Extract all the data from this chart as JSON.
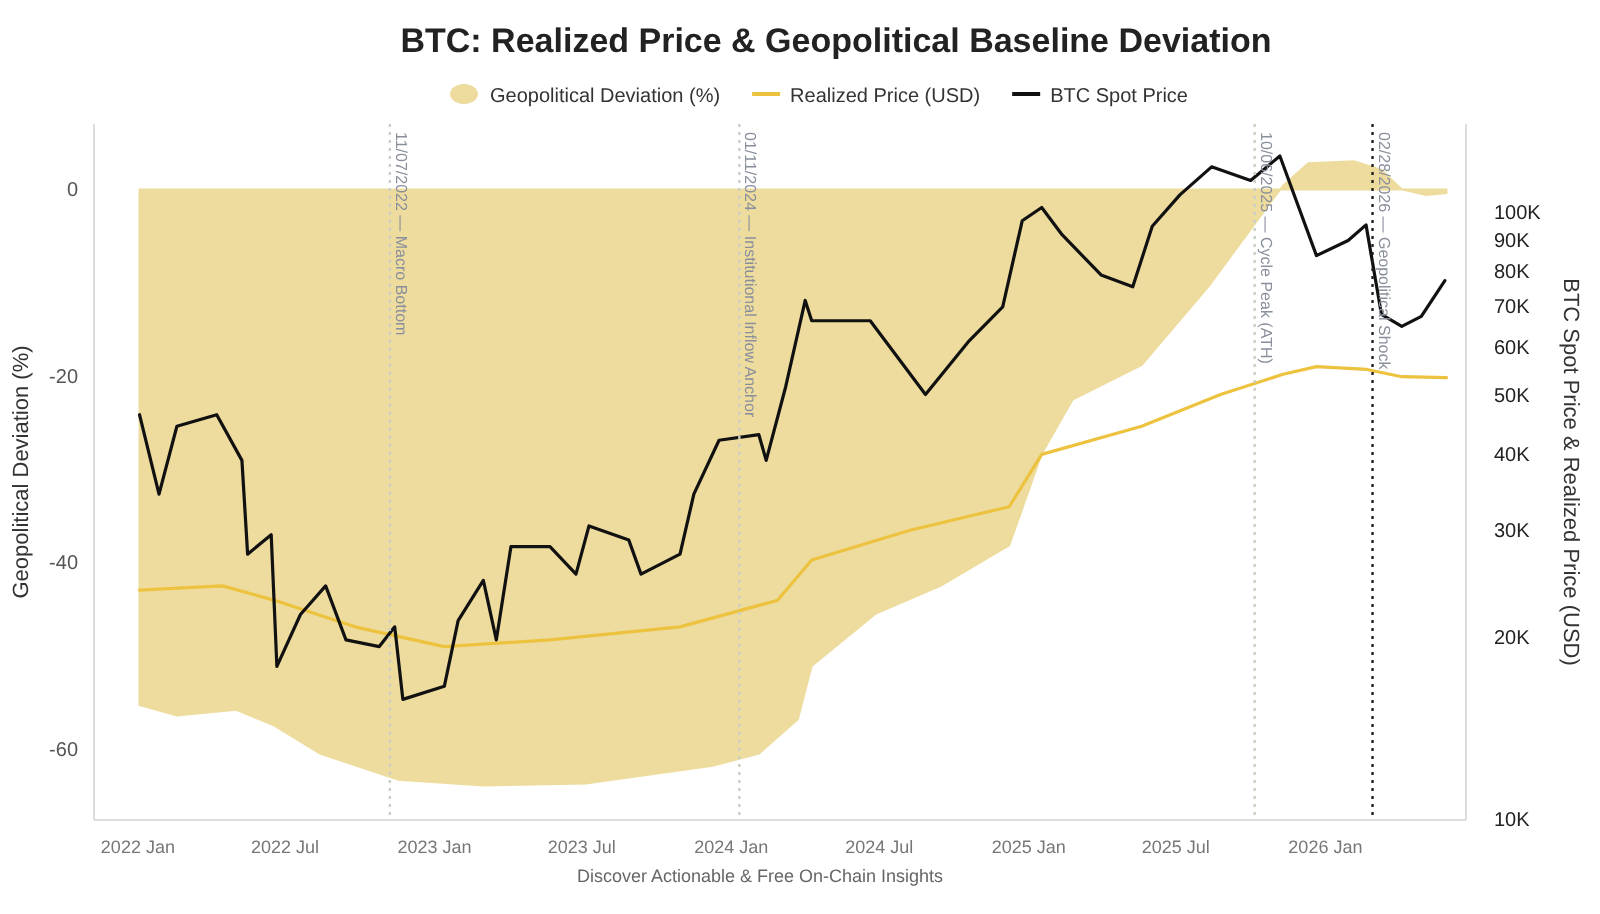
{
  "chart_data": {
    "type": "line",
    "title": "BTC: Realized Price & Geopolitical Baseline Deviation",
    "xlabel": null,
    "ylabel": "Geopolitical Deviation (%)",
    "y2label": "BTC Spot Price & Realized Price (USD)",
    "xlim": [
      "2021-11-08",
      "2026-06-23"
    ],
    "xticks": [
      {
        "value": "2022-01-01",
        "label": "2022 Jan"
      },
      {
        "value": "2022-07-01",
        "label": "2022 Jul"
      },
      {
        "value": "2023-01-01",
        "label": "2023 Jan"
      },
      {
        "value": "2023-07-01",
        "label": "2023 Jul"
      },
      {
        "value": "2024-01-01",
        "label": "2024 Jan"
      },
      {
        "value": "2024-07-01",
        "label": "2024 Jul"
      },
      {
        "value": "2025-01-01",
        "label": "2025 Jan"
      },
      {
        "value": "2025-07-01",
        "label": "2025 Jul"
      },
      {
        "value": "2026-01-01",
        "label": "2026 Jan"
      }
    ],
    "ylim": [
      -67.5,
      7
    ],
    "yticks": [
      0,
      -20,
      -40,
      -60
    ],
    "y2lim": [
      10000,
      140000
    ],
    "y2ticks": [
      {
        "value": 10000,
        "label": "10K"
      },
      {
        "value": 20000,
        "label": "20K"
      },
      {
        "value": 30000,
        "label": "30K"
      },
      {
        "value": 40000,
        "label": "40K"
      },
      {
        "value": 50000,
        "label": "50K"
      },
      {
        "value": 60000,
        "label": "60K"
      },
      {
        "value": 70000,
        "label": "70K"
      },
      {
        "value": 80000,
        "label": "80K"
      },
      {
        "value": 90000,
        "label": "90K"
      },
      {
        "value": 100000,
        "label": "100K"
      }
    ],
    "log": "y2",
    "legend": "top",
    "series": [
      {
        "name": "Geopolitical Deviation (%)",
        "type": "area",
        "color": "#eedc9e",
        "x": [
          "2022-01-03",
          "2022-02-18",
          "2022-05-02",
          "2022-06-18",
          "2022-08-13",
          "2022-11-18",
          "2023-03-02",
          "2023-07-06",
          "2023-12-09",
          "2024-02-04",
          "2024-03-23",
          "2024-04-09",
          "2024-06-27",
          "2024-09-15",
          "2024-12-08",
          "2025-01-17",
          "2025-02-24",
          "2025-05-20",
          "2025-08-11",
          "2025-10-28",
          "2025-11-10",
          "2025-12-11",
          "2026-02-05",
          "2026-03-11",
          "2026-04-05",
          "2026-05-05",
          "2026-05-30"
        ],
        "values": [
          -55.2,
          -56.3,
          -55.7,
          -57.4,
          -60.4,
          -63.2,
          -63.8,
          -63.6,
          -61.7,
          -60.4,
          -56.7,
          -51.0,
          -45.4,
          -42.4,
          -38.1,
          -28.3,
          -22.5,
          -18.8,
          -10.3,
          -1.1,
          0.4,
          2.8,
          3.0,
          2.1,
          0,
          -0.6,
          -0.4
        ]
      },
      {
        "name": "Realized Price (USD)",
        "axis": "y2",
        "color": "#ecc23e",
        "x": [
          "2022-01-03",
          "2022-04-15",
          "2022-06-18",
          "2022-09-25",
          "2023-01-13",
          "2023-05-23",
          "2023-10-30",
          "2024-02-27",
          "2024-04-09",
          "2024-08-08",
          "2024-12-08",
          "2025-01-17",
          "2025-05-20",
          "2025-08-25",
          "2025-11-10",
          "2025-12-21",
          "2026-02-21",
          "2026-04-05",
          "2026-05-30"
        ],
        "values": [
          23900,
          24300,
          23000,
          20800,
          19300,
          19800,
          20800,
          23000,
          26800,
          30000,
          32800,
          40000,
          44500,
          50200,
          54200,
          55800,
          55200,
          53700,
          53500
        ]
      },
      {
        "name": "BTC Spot Price",
        "axis": "y2",
        "color": "#111111",
        "x": [
          "2022-01-03",
          "2022-01-27",
          "2022-02-18",
          "2022-04-08",
          "2022-05-09",
          "2022-05-16",
          "2022-06-14",
          "2022-06-21",
          "2022-07-20",
          "2022-08-20",
          "2022-09-14",
          "2022-10-25",
          "2022-11-13",
          "2022-11-23",
          "2023-01-13",
          "2023-01-30",
          "2023-03-02",
          "2023-03-18",
          "2023-04-05",
          "2023-05-23",
          "2023-06-24",
          "2023-07-10",
          "2023-08-28",
          "2023-09-12",
          "2023-10-30",
          "2023-11-16",
          "2023-12-17",
          "2024-02-04",
          "2024-02-13",
          "2024-03-08",
          "2024-04-01",
          "2024-04-09",
          "2024-06-20",
          "2024-08-27",
          "2024-10-20",
          "2024-11-30",
          "2024-12-24",
          "2025-01-17",
          "2025-02-11",
          "2025-03-31",
          "2025-05-09",
          "2025-06-02",
          "2025-07-06",
          "2025-08-14",
          "2025-10-01",
          "2025-11-06",
          "2025-12-21",
          "2026-01-29",
          "2026-02-20",
          "2026-03-11",
          "2026-04-05",
          "2026-04-29",
          "2026-05-28"
        ],
        "values": [
          46500,
          34400,
          44500,
          46500,
          39100,
          27400,
          29500,
          17900,
          21800,
          24300,
          19800,
          19300,
          20800,
          15800,
          16600,
          21300,
          24800,
          19800,
          28200,
          28200,
          25400,
          30500,
          28900,
          25400,
          27400,
          34400,
          42200,
          43100,
          39100,
          51700,
          71700,
          66400,
          66400,
          50200,
          61600,
          70000,
          97000,
          102000,
          92000,
          79000,
          75500,
          95000,
          107000,
          119000,
          113000,
          124000,
          85000,
          90000,
          95500,
          68000,
          65000,
          67500,
          77300
        ]
      }
    ],
    "ref_lines": [
      {
        "axis": "x",
        "value": "2022-11-07",
        "label": "11/07/2022 — Macro Bottom",
        "color": "#c9cfc0",
        "line_style": "dotted"
      },
      {
        "axis": "x",
        "value": "2024-01-11",
        "label": "01/11/2024 — Institutional Inflow Anchor",
        "color": "#c9cfc0",
        "line_style": "dotted"
      },
      {
        "axis": "x",
        "value": "2025-10-06",
        "label": "10/06/2025 — Cycle Peak (ATH)",
        "color": "#c9cfc0",
        "line_style": "dotted"
      },
      {
        "axis": "x",
        "value": "2026-02-28",
        "label": "02/28/2026 — Geopolitical Shock",
        "color": "#222222",
        "line_style": "dotted"
      }
    ],
    "annotations": [
      "Discover Actionable & Free On-Chain Insights"
    ]
  }
}
